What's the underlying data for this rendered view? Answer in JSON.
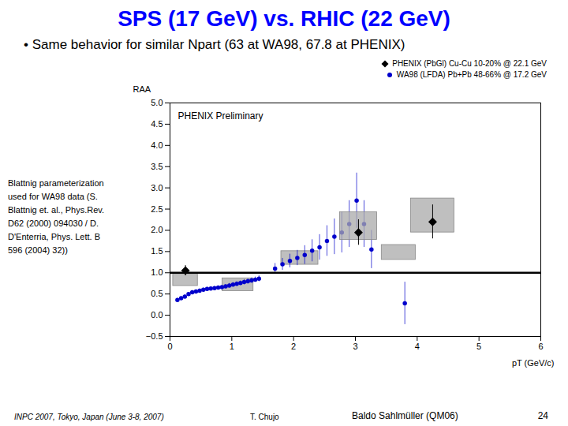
{
  "chart_data": {
    "type": "scatter",
    "title": "SPS (17 GeV) vs. RHIC (22 GeV)",
    "title_color": "#0000FF",
    "subtitle": "•  Same behavior for similar Npart (63 at WA98, 67.8 at PHENIX)",
    "annotations": {
      "plot": "PHENIX Preliminary",
      "left": "Blattnig parameterization\nused for WA98 data (S.\nBlattnig et. al., Phys.Rev.\nD62 (2000) 094030 / D.\nD'Enterria, Phys. Lett. B\n596 (2004) 32))",
      "footer": [
        "INPC 2007, Tokyo, Japan (June 3-8, 2007)",
        "T. Chujo",
        "Baldo Sahlmüller (QM06)",
        "24"
      ]
    },
    "xlabel": "pT (GeV/c)",
    "ylabel": "RAA",
    "xlim": [
      0,
      6
    ],
    "ylim": [
      -0.5,
      5
    ],
    "xticks": [
      0,
      1,
      2,
      3,
      4,
      5,
      6
    ],
    "yticks": [
      {
        "value": -0.5,
        "label": "−0.5"
      },
      {
        "value": 0,
        "label": "0.0"
      },
      {
        "value": 0.5,
        "label": "0.5"
      },
      {
        "value": 1,
        "label": "1.0"
      },
      {
        "value": 1.5,
        "label": "1.5"
      },
      {
        "value": 2,
        "label": "2.0"
      },
      {
        "value": 2.5,
        "label": "2.5"
      },
      {
        "value": 3,
        "label": "3.0"
      },
      {
        "value": 3.5,
        "label": "3.5"
      },
      {
        "value": 4,
        "label": "4.0"
      },
      {
        "value": 4.5,
        "label": "4.5"
      },
      {
        "value": 5,
        "label": "5.0"
      }
    ],
    "grid": false,
    "legend": "top",
    "hlines": [
      1.0
    ],
    "series": [
      {
        "name": "PHENIX (PbGl) Cu-Cu 10-20% @ 22.1 GeV",
        "color": "#000000",
        "marker": "diamond",
        "x": [
          0.25,
          3.05,
          4.25
        ],
        "values": [
          1.05,
          1.95,
          2.2
        ],
        "yerr": [
          0.12,
          0.3,
          0.4
        ],
        "boxes": [
          {
            "x": 3.05,
            "y": 2.1,
            "w": 0.6,
            "h": 0.65
          },
          {
            "x": 4.25,
            "y": 2.35,
            "w": 0.7,
            "h": 0.8
          }
        ]
      },
      {
        "name": "WA98 (LFDA) Pb+Pb 48-66% @ 17.2 GeV",
        "color": "#0000CC",
        "marker": "circle",
        "x": [
          0.12,
          0.18,
          0.24,
          0.3,
          0.36,
          0.42,
          0.48,
          0.54,
          0.6,
          0.66,
          0.72,
          0.78,
          0.84,
          0.9,
          0.96,
          1.02,
          1.08,
          1.14,
          1.2,
          1.26,
          1.32,
          1.38,
          1.44,
          1.7,
          1.82,
          1.94,
          2.06,
          2.18,
          2.3,
          2.42,
          2.54,
          2.66,
          2.78,
          2.9,
          3.02,
          3.14,
          3.26,
          3.8
        ],
        "values": [
          0.36,
          0.4,
          0.44,
          0.5,
          0.54,
          0.56,
          0.58,
          0.6,
          0.62,
          0.63,
          0.64,
          0.65,
          0.66,
          0.68,
          0.7,
          0.72,
          0.74,
          0.76,
          0.78,
          0.8,
          0.82,
          0.84,
          0.86,
          1.1,
          1.2,
          1.28,
          1.35,
          1.42,
          1.52,
          1.6,
          1.75,
          1.85,
          1.95,
          2.15,
          2.7,
          2.15,
          1.55,
          0.28
        ],
        "yerr": [
          0.04,
          0.04,
          0.04,
          0.04,
          0.04,
          0.04,
          0.04,
          0.04,
          0.04,
          0.04,
          0.04,
          0.04,
          0.04,
          0.04,
          0.05,
          0.05,
          0.05,
          0.05,
          0.06,
          0.06,
          0.06,
          0.06,
          0.07,
          0.12,
          0.14,
          0.16,
          0.18,
          0.22,
          0.26,
          0.3,
          0.36,
          0.42,
          0.48,
          0.55,
          0.65,
          0.55,
          0.45,
          0.5
        ],
        "boxes": [
          {
            "x": 0.25,
            "y": 0.83,
            "w": 0.4,
            "h": 0.28
          },
          {
            "x": 1.1,
            "y": 0.72,
            "w": 0.5,
            "h": 0.3
          },
          {
            "x": 2.1,
            "y": 1.35,
            "w": 0.6,
            "h": 0.32
          },
          {
            "x": 3.7,
            "y": 1.48,
            "w": 0.55,
            "h": 0.35
          }
        ]
      }
    ]
  }
}
